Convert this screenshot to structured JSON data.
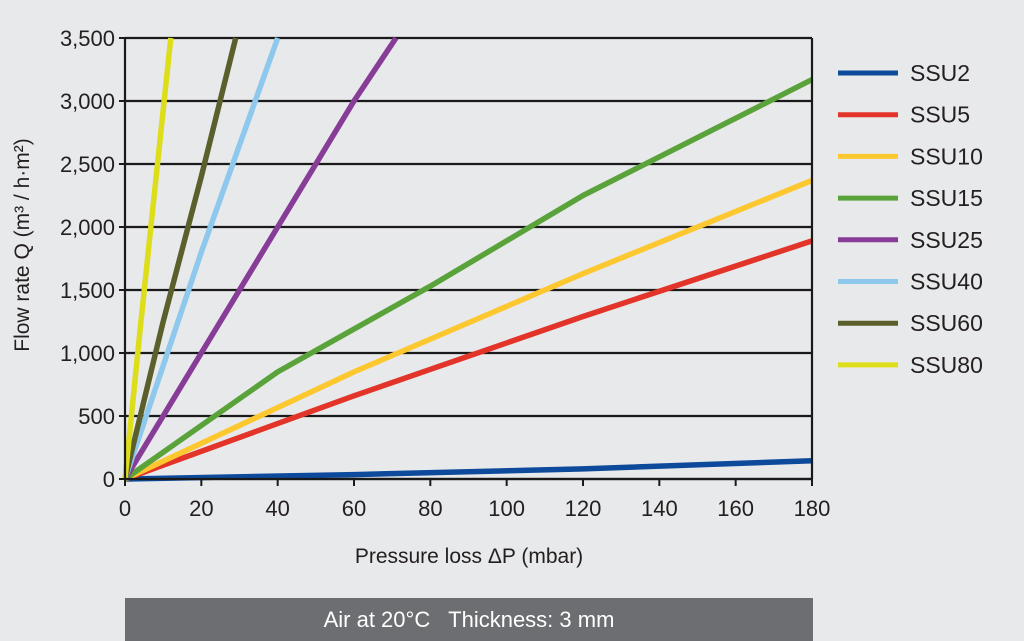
{
  "chart_data": {
    "type": "line",
    "xlabel": "Pressure loss ΔP (mbar)",
    "ylabel": "Flow rate Q (m³ / h·m²)",
    "xlim": [
      0,
      180
    ],
    "ylim": [
      0,
      3500
    ],
    "x_ticks": [
      "0",
      "20",
      "40",
      "60",
      "80",
      "100",
      "120",
      "140",
      "160",
      "180"
    ],
    "y_ticks": [
      "0",
      "500",
      "1,000",
      "1,500",
      "2,000",
      "2,500",
      "3,000",
      "3,500"
    ],
    "grid": "horizontal",
    "legend_position": "right",
    "series": [
      {
        "name": "SSU2",
        "color": "#0d4a9c",
        "points": [
          [
            0,
            0
          ],
          [
            60,
            35
          ],
          [
            120,
            80
          ],
          [
            180,
            145
          ]
        ]
      },
      {
        "name": "SSU5",
        "color": "#e3342a",
        "points": [
          [
            0,
            0
          ],
          [
            60,
            660
          ],
          [
            120,
            1290
          ],
          [
            180,
            1890
          ]
        ]
      },
      {
        "name": "SSU10",
        "color": "#fdc82f",
        "points": [
          [
            0,
            0
          ],
          [
            60,
            850
          ],
          [
            120,
            1630
          ],
          [
            180,
            2370
          ]
        ]
      },
      {
        "name": "SSU15",
        "color": "#5aa33b",
        "points": [
          [
            0,
            0
          ],
          [
            40,
            850
          ],
          [
            80,
            1530
          ],
          [
            120,
            2250
          ],
          [
            180,
            3170
          ]
        ]
      },
      {
        "name": "SSU25",
        "color": "#873c97",
        "points": [
          [
            0,
            0
          ],
          [
            20,
            1000
          ],
          [
            40,
            2000
          ],
          [
            60,
            3000
          ],
          [
            71,
            3500
          ]
        ]
      },
      {
        "name": "SSU40",
        "color": "#8ec8ec",
        "points": [
          [
            0,
            0
          ],
          [
            10,
            900
          ],
          [
            20,
            1800
          ],
          [
            30,
            2650
          ],
          [
            40,
            3500
          ]
        ]
      },
      {
        "name": "SSU60",
        "color": "#5a5f2c",
        "points": [
          [
            0,
            0
          ],
          [
            10,
            1250
          ],
          [
            20,
            2400
          ],
          [
            29,
            3500
          ]
        ]
      },
      {
        "name": "SSU80",
        "color": "#dddd19",
        "points": [
          [
            0,
            0
          ],
          [
            4,
            1200
          ],
          [
            8,
            2350
          ],
          [
            12,
            3500
          ]
        ]
      }
    ]
  },
  "footer": {
    "text": "Air at 20°C   Thickness: 3 mm"
  }
}
